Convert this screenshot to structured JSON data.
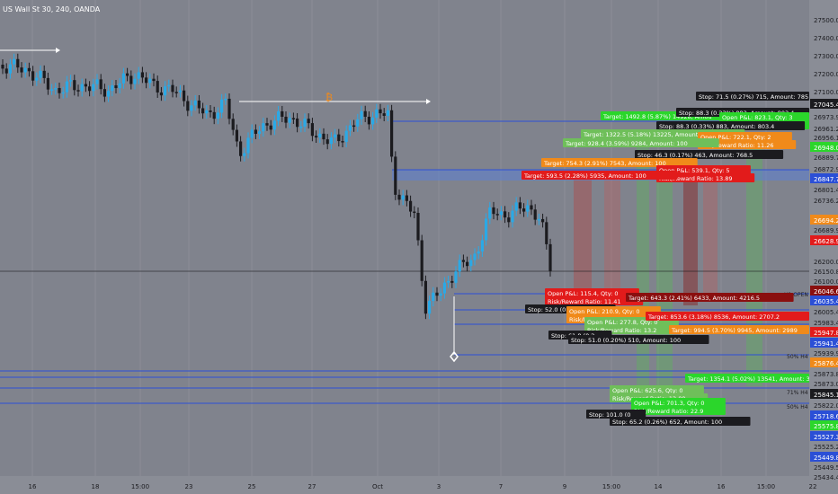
{
  "header": {
    "symbol_title": "US Wall St 30, 240, OANDA"
  },
  "colors": {
    "background": "#80838d",
    "axis_bg": "#8a8d96",
    "grid": "#8b8e97",
    "candle_up": "#2aa9e6",
    "candle_down": "#1b1b1f",
    "level_line": "#2b4fd6",
    "zone_fill": "#5b7fd6",
    "stop_label": "#1b1b1f",
    "target_green": "#2bd62b",
    "target_light": "#6fbf5a",
    "target_orange": "#f08a1a",
    "target_red": "#e21b1b",
    "target_darkred": "#8a0f0f"
  },
  "price_axis": {
    "labels": [
      "27500.0",
      "27400.0",
      "27300.0",
      "27200.0",
      "27100.0",
      "27045.4",
      "26973.9",
      "26961.2",
      "26956.1",
      "26948.0",
      "26889.7",
      "26872.9",
      "26847.7",
      "26801.4",
      "26736.2",
      "26694.2",
      "26689.9",
      "26628.9",
      "26200.0",
      "26150.8",
      "26100.0",
      "26046.6",
      "26035.4",
      "26005.4",
      "25983.4",
      "25947.8",
      "25941.4",
      "25939.9",
      "25876.4",
      "25873.8",
      "25873.0",
      "25845.1",
      "25822.0",
      "25718.6",
      "25575.8",
      "25527.3",
      "25525.2",
      "25449.8",
      "25449.5",
      "25434.4"
    ],
    "badges": [
      {
        "text": "27045.4",
        "color": "#1b1b1f"
      },
      {
        "text": "26948.0",
        "color": "#2bd62b"
      },
      {
        "text": "26847.7",
        "color": "#2b4fd6"
      },
      {
        "text": "26694.2",
        "color": "#f08a1a"
      },
      {
        "text": "26628.9",
        "color": "#e21b1b"
      },
      {
        "text": "26046.6",
        "color": "#8a0f0f"
      },
      {
        "text": "26035.4",
        "color": "#2b4fd6"
      },
      {
        "text": "25947.8",
        "color": "#e21b1b"
      },
      {
        "text": "25941.4",
        "color": "#2b4fd6"
      },
      {
        "text": "25876.4",
        "color": "#f08a1a"
      },
      {
        "text": "25845.1",
        "color": "#1b1b1f"
      },
      {
        "text": "25718.6",
        "color": "#2b4fd6"
      },
      {
        "text": "25575.8",
        "color": "#2bd62b"
      },
      {
        "text": "25527.3",
        "color": "#2b4fd6"
      },
      {
        "text": "25449.8",
        "color": "#2b4fd6"
      }
    ]
  },
  "time_axis": {
    "labels": [
      "16",
      "18",
      "15:00",
      "23",
      "25",
      "27",
      "Oct",
      "3",
      "7",
      "9",
      "15:00",
      "14",
      "16",
      "15:00",
      "22"
    ]
  },
  "level_labels": [
    "H1 OPEN",
    "71% H4",
    "50% H4",
    "71% H4",
    "50% H4"
  ],
  "trade_labels": [
    {
      "text": "Stop: 71.5 (0.27%) 715, Amount: 785",
      "color": "stop"
    },
    {
      "text": "Target: 1492.8 (5.87%) 14928, Amou",
      "color": "green"
    },
    {
      "text": "Stop: 88.3 (0.33%) 883, Amount: 803.4",
      "color": "stop"
    },
    {
      "text": "Open P&L: 823.1, Qty: 3",
      "color": "green"
    },
    {
      "text": "Risk/Reward Ratio: 18.94",
      "color": "green"
    },
    {
      "text": "Stop: 88.3 (0.33%) 883, Amount: 803.4",
      "color": "stop"
    },
    {
      "text": "Target: 1322.5 (5.18%) 13225, Amount: 803",
      "color": "light"
    },
    {
      "text": "Open P&L: 722.1, Qty: 2",
      "color": "orange"
    },
    {
      "text": "Risk/Reward Ratio: 11.26",
      "color": "orange"
    },
    {
      "text": "Target: 928.4 (3.59%) 9284, Amount: 100",
      "color": "light"
    },
    {
      "text": "Stop: 46.3 (0.17%) 463, Amount: 768.5",
      "color": "stop"
    },
    {
      "text": "Target: 754.3 (2.91%) 7543, Amount: 100",
      "color": "orange"
    },
    {
      "text": "Open P&L: 539.1, Qty: 5",
      "color": "red"
    },
    {
      "text": "Risk/Reward Ratio: 13.89",
      "color": "red"
    },
    {
      "text": "Target: 593.5 (2.28%) 5935, Amount: 100",
      "color": "red"
    },
    {
      "text": "Open P&L: 115.4, Qty: 0",
      "color": "red"
    },
    {
      "text": "Risk/Reward Ratio: 11.41",
      "color": "red"
    },
    {
      "text": "Target: 643.3 (2.41%) 6433, Amount: 4216.5",
      "color": "darkred"
    },
    {
      "text": "Stop: 52.0 (0.20%) 520",
      "color": "stop"
    },
    {
      "text": "Open P&L: 210.9, Qty: 0",
      "color": "orange"
    },
    {
      "text": "Risk/Reward Ratio: 11",
      "color": "orange"
    },
    {
      "text": "Open P&L: 277.8, Qty: 0",
      "color": "light"
    },
    {
      "text": "Risk/Reward Ratio: 13.2",
      "color": "light"
    },
    {
      "text": "Target: 853.6 (3.18%) 8536, Amount: 2707.2",
      "color": "red"
    },
    {
      "text": "Target: 994.5 (3.70%) 9945, Amount: 2989",
      "color": "orange"
    },
    {
      "text": "Stop: 61.8 (0.2",
      "color": "stop"
    },
    {
      "text": "Stop: 51.0 (0.20%) 510, Amount: 100",
      "color": "stop"
    },
    {
      "text": "Target: 1354.1 (5.02%) 13541, Amount: 3",
      "color": "green"
    },
    {
      "text": "Open P&L: 625.6, Qty: 0",
      "color": "light"
    },
    {
      "text": "Risk/Reward Ratio: 12.09",
      "color": "light"
    },
    {
      "text": "Open P&L: 701.3, Qty: 0",
      "color": "green"
    },
    {
      "text": "Risk/Reward Ratio: 22.9",
      "color": "green"
    },
    {
      "text": "Stop: 101.0 (0",
      "color": "stop"
    },
    {
      "text": "Stop: 65.2 (0.26%) 652, Amount: 100",
      "color": "stop"
    }
  ],
  "icons": {
    "bitcoin_marker": "bitcoin-icon",
    "diamond_marker": "diamond-icon"
  }
}
